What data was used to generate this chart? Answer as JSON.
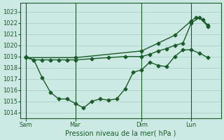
{
  "background_color": "#cce9e4",
  "grid_color": "#a8d0cc",
  "line_color": "#1a5c28",
  "marker": "D",
  "markersize": 2.5,
  "linewidth": 1.0,
  "xlabel": "Pression niveau de la mer( hPa )",
  "ylim": [
    1013.5,
    1023.8
  ],
  "yticks": [
    1014,
    1015,
    1016,
    1017,
    1018,
    1019,
    1020,
    1021,
    1022,
    1023
  ],
  "xtick_labels": [
    "Sam",
    "Mar",
    "Dim",
    "Lun"
  ],
  "xtick_positions": [
    0,
    3,
    7,
    10
  ],
  "vline_positions": [
    0,
    3,
    7,
    10
  ],
  "xlim": [
    -0.3,
    11.8
  ],
  "line1_x": [
    0,
    0.5,
    1.0,
    1.5,
    2.0,
    2.5,
    3.0,
    3.5,
    4.0,
    4.5,
    5.0,
    5.5,
    6.0,
    6.5,
    7.0,
    7.5,
    8.0,
    8.5,
    9.0,
    9.5,
    10.0,
    10.5,
    11.0
  ],
  "line1_y": [
    1019.0,
    1018.7,
    1017.1,
    1015.8,
    1015.2,
    1015.2,
    1014.8,
    1014.4,
    1015.0,
    1015.2,
    1015.1,
    1015.2,
    1016.1,
    1017.6,
    1017.8,
    1018.5,
    1018.2,
    1018.1,
    1019.0,
    1019.6,
    1019.6,
    1019.3,
    1018.9
  ],
  "line2_x": [
    0,
    0.5,
    1.0,
    1.5,
    2.0,
    2.5,
    3.0,
    4.0,
    5.0,
    6.0,
    7.0,
    7.5,
    8.0,
    8.5,
    9.0,
    9.5,
    10.0,
    10.5,
    11.0
  ],
  "line2_y": [
    1018.9,
    1018.7,
    1018.7,
    1018.7,
    1018.7,
    1018.7,
    1018.7,
    1018.8,
    1018.9,
    1019.0,
    1019.0,
    1019.2,
    1019.5,
    1019.7,
    1020.0,
    1020.2,
    1022.0,
    1022.5,
    1021.7
  ],
  "line3_x": [
    0,
    3.0,
    7.0,
    8.0,
    9.0,
    10.0,
    10.3,
    10.7,
    11.0
  ],
  "line3_y": [
    1018.9,
    1018.9,
    1019.5,
    1020.2,
    1020.9,
    1022.2,
    1022.5,
    1022.3,
    1021.8
  ]
}
